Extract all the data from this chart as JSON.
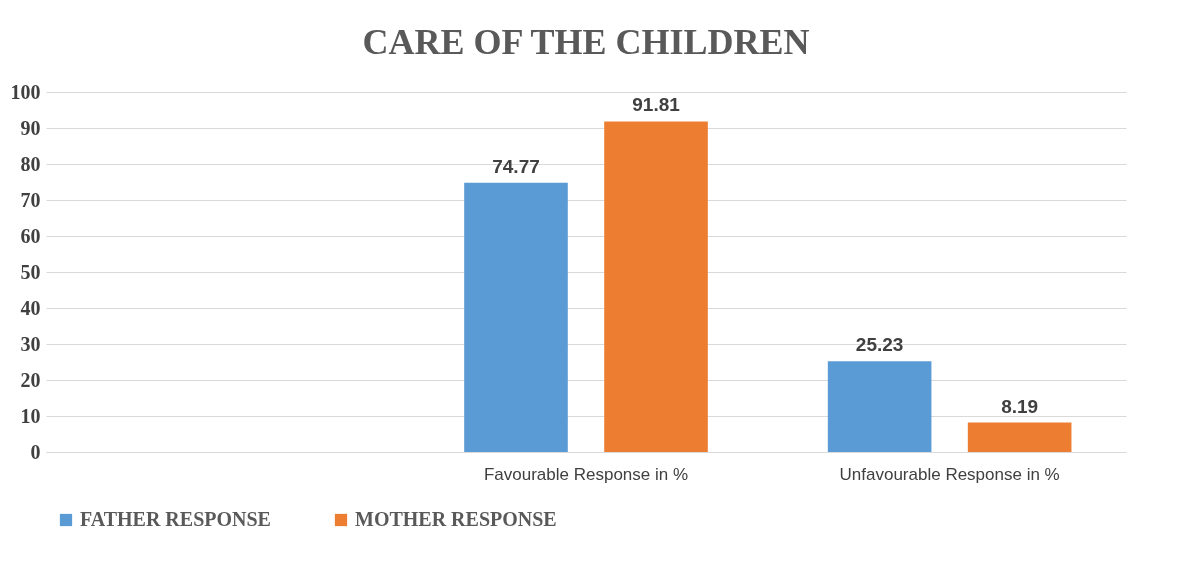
{
  "chart_data": {
    "type": "bar",
    "title": "CARE OF THE CHILDREN",
    "categories": [
      null,
      "Favourable Response in %",
      "Unfavourable Response in %"
    ],
    "series": [
      {
        "name": "FATHER RESPONSE",
        "color": "#5b9bd5",
        "values": [
          null,
          74.77,
          25.23
        ]
      },
      {
        "name": "MOTHER RESPONSE",
        "color": "#ed7d31",
        "values": [
          null,
          91.81,
          8.19
        ]
      }
    ],
    "ylim": [
      0,
      100
    ],
    "yticks": [
      0,
      10,
      20,
      30,
      40,
      50,
      60,
      70,
      80,
      90,
      100
    ],
    "grid": "y",
    "legend": "bottom",
    "data_labels": true
  }
}
